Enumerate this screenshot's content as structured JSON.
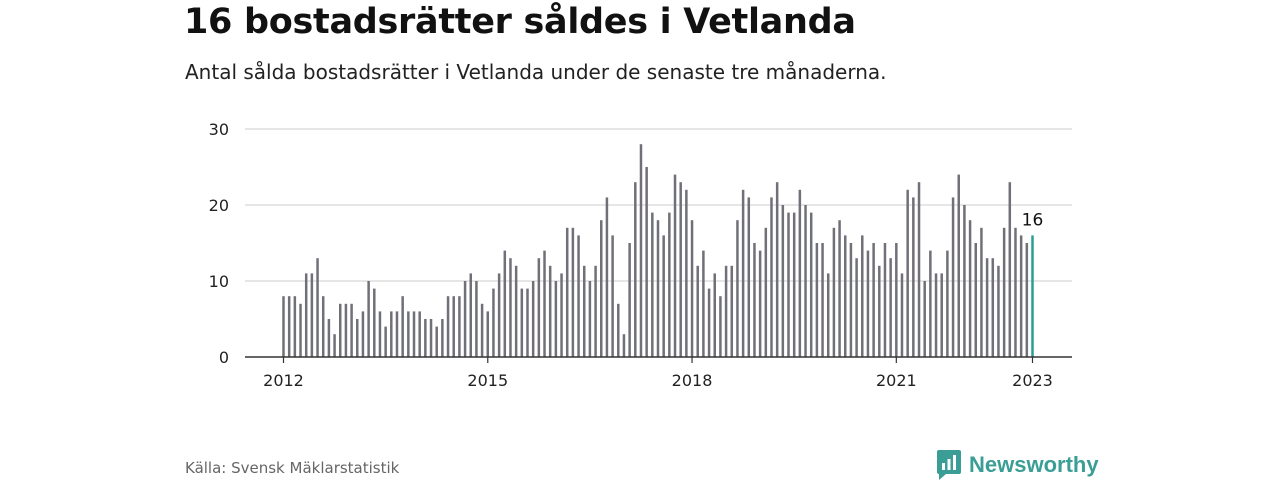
{
  "title": "16 bostadsrätter såldes i Vetlanda",
  "subtitle": "Antal sålda bostadsrätter i Vetlanda under de senaste tre månaderna.",
  "source": "Källa: Svensk Mäklarstatistik",
  "brand": "Newsworthy",
  "colors": {
    "bar": "#707078",
    "highlight": "#2a9d96",
    "grid": "#dddddd",
    "axis": "#333333",
    "brand": "#3a9e96"
  },
  "chart_data": {
    "type": "bar",
    "x_start": "2012-01",
    "x_end": "2023-01",
    "values": [
      8,
      8,
      8,
      7,
      11,
      11,
      13,
      8,
      5,
      3,
      7,
      7,
      7,
      5,
      6,
      10,
      9,
      6,
      4,
      6,
      6,
      8,
      6,
      6,
      6,
      5,
      5,
      4,
      5,
      8,
      8,
      8,
      10,
      11,
      10,
      7,
      6,
      9,
      11,
      14,
      13,
      12,
      9,
      9,
      10,
      13,
      14,
      12,
      10,
      11,
      17,
      17,
      16,
      12,
      10,
      12,
      18,
      21,
      16,
      7,
      3,
      15,
      23,
      28,
      25,
      19,
      18,
      16,
      19,
      24,
      23,
      22,
      18,
      12,
      14,
      9,
      11,
      8,
      12,
      12,
      18,
      22,
      21,
      15,
      14,
      17,
      21,
      23,
      20,
      19,
      19,
      22,
      20,
      19,
      15,
      15,
      11,
      17,
      18,
      16,
      15,
      13,
      16,
      14,
      15,
      12,
      15,
      13,
      15,
      11,
      22,
      21,
      23,
      10,
      14,
      11,
      11,
      14,
      21,
      24,
      20,
      18,
      15,
      17,
      13,
      13,
      12,
      17,
      23,
      17,
      16,
      15,
      16
    ],
    "highlight_label": "16",
    "x_ticks": [
      "2012",
      "2015",
      "2018",
      "2021",
      "2023"
    ],
    "y_ticks": [
      0,
      10,
      20,
      30
    ],
    "ylim": [
      0,
      30
    ],
    "grid": true
  }
}
